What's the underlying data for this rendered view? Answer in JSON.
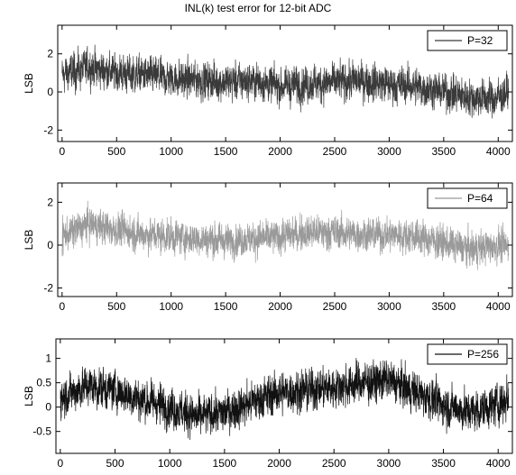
{
  "chart_data": {
    "title": "INL(k) test error for 12-bit ADC",
    "panels": [
      {
        "type": "line",
        "ylabel": "LSB",
        "xlim": [
          -40,
          4130
        ],
        "ylim": [
          -2.6,
          3.5
        ],
        "xticks": [
          0,
          500,
          1000,
          1500,
          2000,
          2500,
          3000,
          3500,
          4000
        ],
        "yticks": [
          -2,
          0,
          2
        ],
        "legend_position": "top-right",
        "series": [
          {
            "name": "P=32",
            "color": "#3a3a3a",
            "trend_x": [
              0,
              250,
              500,
              750,
              1000,
              1250,
              1500,
              1750,
              2000,
              2250,
              2500,
              2750,
              3000,
              3250,
              3500,
              3750,
              4000,
              4095
            ],
            "trend_y": [
              0.9,
              1.3,
              1.0,
              0.9,
              0.7,
              0.6,
              0.5,
              0.6,
              0.3,
              0.4,
              0.5,
              0.6,
              0.4,
              0.3,
              0.0,
              -0.3,
              -0.3,
              0.0
            ],
            "noise_amplitude": 0.75
          }
        ]
      },
      {
        "type": "line",
        "ylabel": "LSB",
        "xlim": [
          -40,
          4130
        ],
        "ylim": [
          -2.4,
          2.9
        ],
        "xticks": [
          0,
          500,
          1000,
          1500,
          2000,
          2500,
          3000,
          3500,
          4000
        ],
        "yticks": [
          -2,
          0,
          2
        ],
        "legend_position": "top-right",
        "series": [
          {
            "name": "P=64",
            "color": "#9a9a9a",
            "trend_x": [
              0,
              250,
              500,
              750,
              1000,
              1250,
              1500,
              1750,
              2000,
              2250,
              2500,
              2750,
              3000,
              3250,
              3500,
              3750,
              4000,
              4095
            ],
            "trend_y": [
              0.4,
              1.0,
              0.7,
              0.5,
              0.4,
              0.3,
              0.2,
              0.3,
              0.4,
              0.6,
              0.6,
              0.5,
              0.5,
              0.4,
              0.1,
              -0.2,
              0.0,
              -0.1
            ],
            "noise_amplitude": 0.6
          }
        ]
      },
      {
        "type": "line",
        "ylabel": "LSB",
        "xlim": [
          -40,
          4130
        ],
        "ylim": [
          -0.95,
          1.4
        ],
        "xticks": [
          0,
          500,
          1000,
          1500,
          2000,
          2500,
          3000,
          3500,
          4000
        ],
        "yticks": [
          -0.5,
          0,
          0.5,
          1
        ],
        "legend_position": "top-right",
        "series": [
          {
            "name": "P=256",
            "color": "#111111",
            "trend_x": [
              0,
              250,
              500,
              750,
              1000,
              1250,
              1500,
              1750,
              2000,
              2250,
              2500,
              2750,
              3000,
              3250,
              3500,
              3750,
              4000,
              4095
            ],
            "trend_y": [
              0.2,
              0.45,
              0.35,
              0.15,
              0.0,
              -0.2,
              -0.1,
              0.1,
              0.3,
              0.35,
              0.4,
              0.5,
              0.55,
              0.3,
              0.05,
              -0.1,
              0.05,
              0.2
            ],
            "noise_amplitude": 0.32
          }
        ]
      }
    ]
  }
}
